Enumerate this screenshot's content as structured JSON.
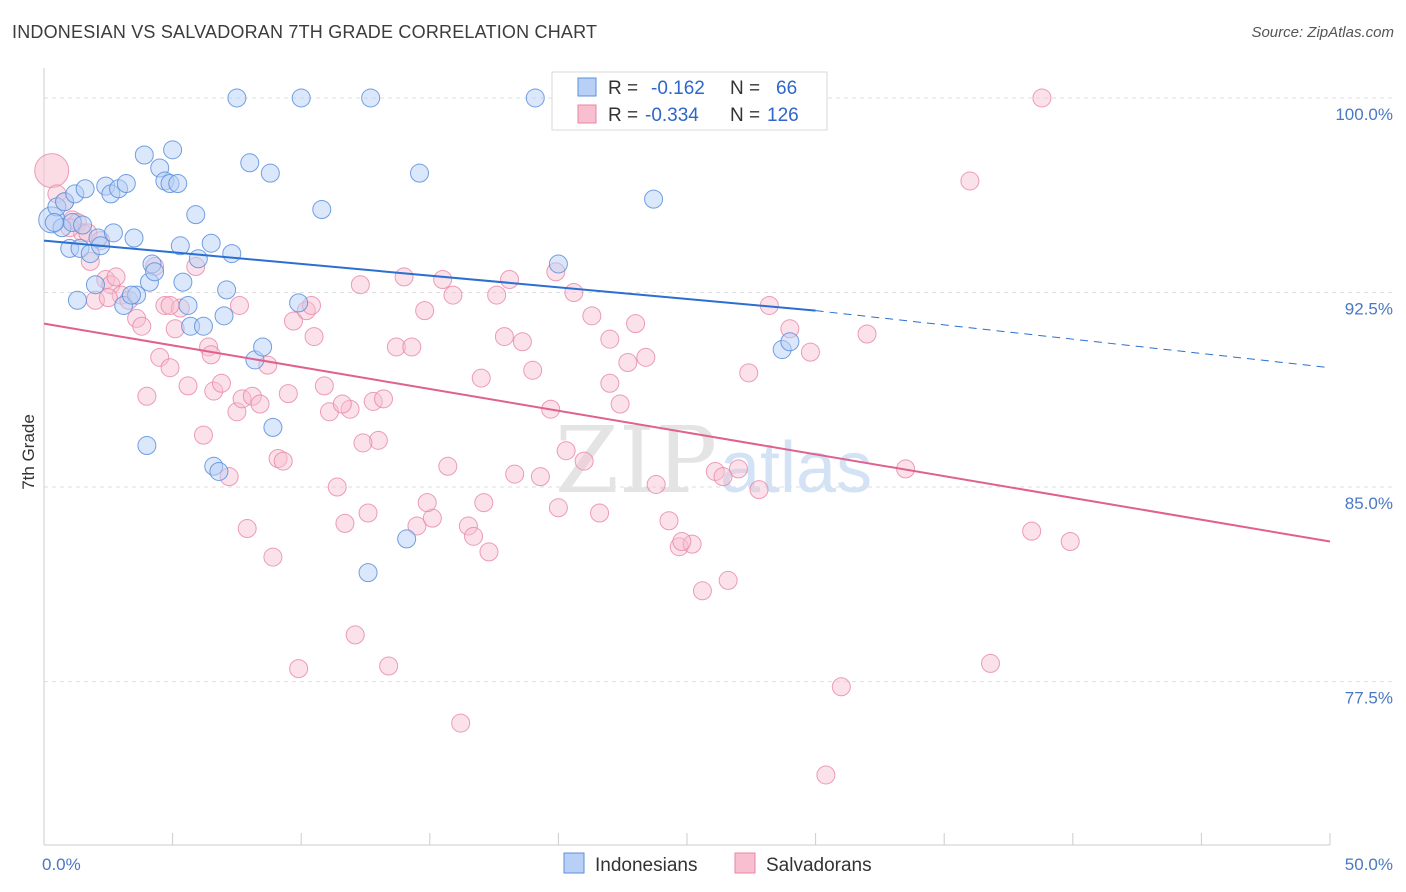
{
  "title": "INDONESIAN VS SALVADORAN 7TH GRADE CORRELATION CHART",
  "source": "Source: ZipAtlas.com",
  "watermark": {
    "zip": "ZIP",
    "atlas": "atlas"
  },
  "colors": {
    "indonesians_fill": "#b8d0f5",
    "indonesians_stroke": "#5b8fdc",
    "indonesians_line": "#2b6fd1",
    "salvadorans_fill": "#f7bfd0",
    "salvadorans_stroke": "#e884a6",
    "salvadorans_line": "#e0608e",
    "tick_text": "#4a78c4",
    "grid": "#dddddd"
  },
  "legend": {
    "rows": [
      {
        "r_label": "R =",
        "r_value": "-0.162",
        "n_label": "N =",
        "n_value": "66"
      },
      {
        "r_label": "R =",
        "r_value": "-0.334",
        "n_label": "N =",
        "n_value": "126"
      }
    ]
  },
  "chart_data": {
    "type": "scatter",
    "title": "INDONESIAN VS SALVADORAN 7TH GRADE CORRELATION CHART",
    "xlabel": "",
    "ylabel": "7th Grade",
    "xlim": [
      0,
      50
    ],
    "ylim": [
      71.2,
      101.0
    ],
    "x_tick_labels": [
      "0.0%",
      "50.0%"
    ],
    "y_ticks": [
      {
        "value": 77.5,
        "label": "77.5%"
      },
      {
        "value": 85.0,
        "label": "85.0%"
      },
      {
        "value": 92.5,
        "label": "92.5%"
      },
      {
        "value": 100.0,
        "label": "100.0%"
      }
    ],
    "grid": true,
    "legend_position": "top-center",
    "series": [
      {
        "name": "Indonesians",
        "trend": {
          "x0": 0,
          "y0": 94.5,
          "x1": 30,
          "y1": 91.8,
          "dashed_to_x": 50,
          "dashed_to_y": 89.6
        },
        "points": [
          [
            0.3,
            95.3
          ],
          [
            0.5,
            95.8
          ],
          [
            0.7,
            95.0
          ],
          [
            0.8,
            96.0
          ],
          [
            1.0,
            94.2
          ],
          [
            1.1,
            95.2
          ],
          [
            1.2,
            96.3
          ],
          [
            1.3,
            92.2
          ],
          [
            1.4,
            94.2
          ],
          [
            1.6,
            96.5
          ],
          [
            1.8,
            94.0
          ],
          [
            2.0,
            92.8
          ],
          [
            2.1,
            94.6
          ],
          [
            2.2,
            94.3
          ],
          [
            2.4,
            96.6
          ],
          [
            2.6,
            96.3
          ],
          [
            2.7,
            94.8
          ],
          [
            2.9,
            96.5
          ],
          [
            3.1,
            92.0
          ],
          [
            3.2,
            96.7
          ],
          [
            3.5,
            94.6
          ],
          [
            3.6,
            92.4
          ],
          [
            3.9,
            97.8
          ],
          [
            4.1,
            92.9
          ],
          [
            4.2,
            93.6
          ],
          [
            4.3,
            93.3
          ],
          [
            4.5,
            97.3
          ],
          [
            4.7,
            96.8
          ],
          [
            4.9,
            96.7
          ],
          [
            5.0,
            98.0
          ],
          [
            5.2,
            96.7
          ],
          [
            5.3,
            94.3
          ],
          [
            5.4,
            92.9
          ],
          [
            5.7,
            91.2
          ],
          [
            5.9,
            95.5
          ],
          [
            6.0,
            93.8
          ],
          [
            6.2,
            91.2
          ],
          [
            6.5,
            94.4
          ],
          [
            6.6,
            85.8
          ],
          [
            6.8,
            85.6
          ],
          [
            7.0,
            91.6
          ],
          [
            7.1,
            92.6
          ],
          [
            7.3,
            94.0
          ],
          [
            7.5,
            100.0
          ],
          [
            8.0,
            97.5
          ],
          [
            8.2,
            89.9
          ],
          [
            8.5,
            90.4
          ],
          [
            8.8,
            97.1
          ],
          [
            8.9,
            87.3
          ],
          [
            10.0,
            100.0
          ],
          [
            9.9,
            92.1
          ],
          [
            10.8,
            95.7
          ],
          [
            12.7,
            100.0
          ],
          [
            12.6,
            81.7
          ],
          [
            14.1,
            83.0
          ],
          [
            14.6,
            97.1
          ],
          [
            19.1,
            100.0
          ],
          [
            20.0,
            93.6
          ],
          [
            23.7,
            96.1
          ],
          [
            28.7,
            90.3
          ],
          [
            29.0,
            90.6
          ],
          [
            0.4,
            95.2
          ],
          [
            1.5,
            95.1
          ],
          [
            3.4,
            92.4
          ],
          [
            5.6,
            92.0
          ],
          [
            4.0,
            86.6
          ]
        ]
      },
      {
        "name": "Salvadorans",
        "trend": {
          "x0": 0,
          "y0": 91.3,
          "x1": 50,
          "y1": 82.9
        },
        "points": [
          [
            0.3,
            97.2
          ],
          [
            0.5,
            96.3
          ],
          [
            0.8,
            96.0
          ],
          [
            1.1,
            95.3
          ],
          [
            1.3,
            95.2
          ],
          [
            1.5,
            94.8
          ],
          [
            1.7,
            94.8
          ],
          [
            1.8,
            93.7
          ],
          [
            2.0,
            92.2
          ],
          [
            2.2,
            94.5
          ],
          [
            2.4,
            93.0
          ],
          [
            2.6,
            92.8
          ],
          [
            2.8,
            93.1
          ],
          [
            3.0,
            92.4
          ],
          [
            3.3,
            92.2
          ],
          [
            3.6,
            91.5
          ],
          [
            3.8,
            91.2
          ],
          [
            4.0,
            88.5
          ],
          [
            4.3,
            93.5
          ],
          [
            4.5,
            90.0
          ],
          [
            4.7,
            92.0
          ],
          [
            4.9,
            89.6
          ],
          [
            5.1,
            91.1
          ],
          [
            5.3,
            91.9
          ],
          [
            5.6,
            88.9
          ],
          [
            5.9,
            93.5
          ],
          [
            6.2,
            87.0
          ],
          [
            6.4,
            90.4
          ],
          [
            6.6,
            88.7
          ],
          [
            6.9,
            89.0
          ],
          [
            7.2,
            85.4
          ],
          [
            7.5,
            87.9
          ],
          [
            7.7,
            88.4
          ],
          [
            7.9,
            83.4
          ],
          [
            8.1,
            88.5
          ],
          [
            8.4,
            88.2
          ],
          [
            8.7,
            89.7
          ],
          [
            8.9,
            82.3
          ],
          [
            9.1,
            86.1
          ],
          [
            9.3,
            86.0
          ],
          [
            9.5,
            88.6
          ],
          [
            9.7,
            91.4
          ],
          [
            9.9,
            78.0
          ],
          [
            10.2,
            91.8
          ],
          [
            10.5,
            90.8
          ],
          [
            10.9,
            88.9
          ],
          [
            11.1,
            87.9
          ],
          [
            11.4,
            85.0
          ],
          [
            11.7,
            83.6
          ],
          [
            11.9,
            88.0
          ],
          [
            12.1,
            79.3
          ],
          [
            12.3,
            92.8
          ],
          [
            12.6,
            84.0
          ],
          [
            12.8,
            88.3
          ],
          [
            13.0,
            86.8
          ],
          [
            13.2,
            88.4
          ],
          [
            13.4,
            78.1
          ],
          [
            13.7,
            90.4
          ],
          [
            14.0,
            93.1
          ],
          [
            14.3,
            90.4
          ],
          [
            14.5,
            83.5
          ],
          [
            14.8,
            91.8
          ],
          [
            15.1,
            83.8
          ],
          [
            15.5,
            93.0
          ],
          [
            15.9,
            92.4
          ],
          [
            16.2,
            75.9
          ],
          [
            16.5,
            83.5
          ],
          [
            16.7,
            83.1
          ],
          [
            17.0,
            89.2
          ],
          [
            17.3,
            82.5
          ],
          [
            17.6,
            92.4
          ],
          [
            17.9,
            90.8
          ],
          [
            18.3,
            85.5
          ],
          [
            18.6,
            90.6
          ],
          [
            19.0,
            89.5
          ],
          [
            19.3,
            85.4
          ],
          [
            19.7,
            88.0
          ],
          [
            20.0,
            84.2
          ],
          [
            20.3,
            86.4
          ],
          [
            20.6,
            92.5
          ],
          [
            21.0,
            86.0
          ],
          [
            21.3,
            91.6
          ],
          [
            21.6,
            84.0
          ],
          [
            22.0,
            90.7
          ],
          [
            22.4,
            88.2
          ],
          [
            22.7,
            89.8
          ],
          [
            23.0,
            91.3
          ],
          [
            23.4,
            90.0
          ],
          [
            23.8,
            85.1
          ],
          [
            24.3,
            83.7
          ],
          [
            24.7,
            82.7
          ],
          [
            25.2,
            82.8
          ],
          [
            25.6,
            81.0
          ],
          [
            26.1,
            85.6
          ],
          [
            26.6,
            81.4
          ],
          [
            27.0,
            85.7
          ],
          [
            27.4,
            89.4
          ],
          [
            27.8,
            84.9
          ],
          [
            28.2,
            92.0
          ],
          [
            29.0,
            91.1
          ],
          [
            31.0,
            77.3
          ],
          [
            32.0,
            90.9
          ],
          [
            33.5,
            85.7
          ],
          [
            36.0,
            96.8
          ],
          [
            36.8,
            78.2
          ],
          [
            38.4,
            83.3
          ],
          [
            38.8,
            100.0
          ],
          [
            39.9,
            82.9
          ],
          [
            30.4,
            73.9
          ],
          [
            29.8,
            90.2
          ],
          [
            1.0,
            95.0
          ],
          [
            2.5,
            92.3
          ],
          [
            4.9,
            92.0
          ],
          [
            6.5,
            90.1
          ],
          [
            7.6,
            92.0
          ],
          [
            10.4,
            92.0
          ],
          [
            12.4,
            86.7
          ],
          [
            14.9,
            84.4
          ],
          [
            15.7,
            85.8
          ],
          [
            17.1,
            84.4
          ],
          [
            18.1,
            93.0
          ],
          [
            19.9,
            93.3
          ],
          [
            22.0,
            89.0
          ],
          [
            24.8,
            82.9
          ],
          [
            26.4,
            85.4
          ],
          [
            11.6,
            88.2
          ]
        ]
      }
    ]
  },
  "bottom_legend": [
    {
      "label": "Indonesians"
    },
    {
      "label": "Salvadorans"
    }
  ]
}
